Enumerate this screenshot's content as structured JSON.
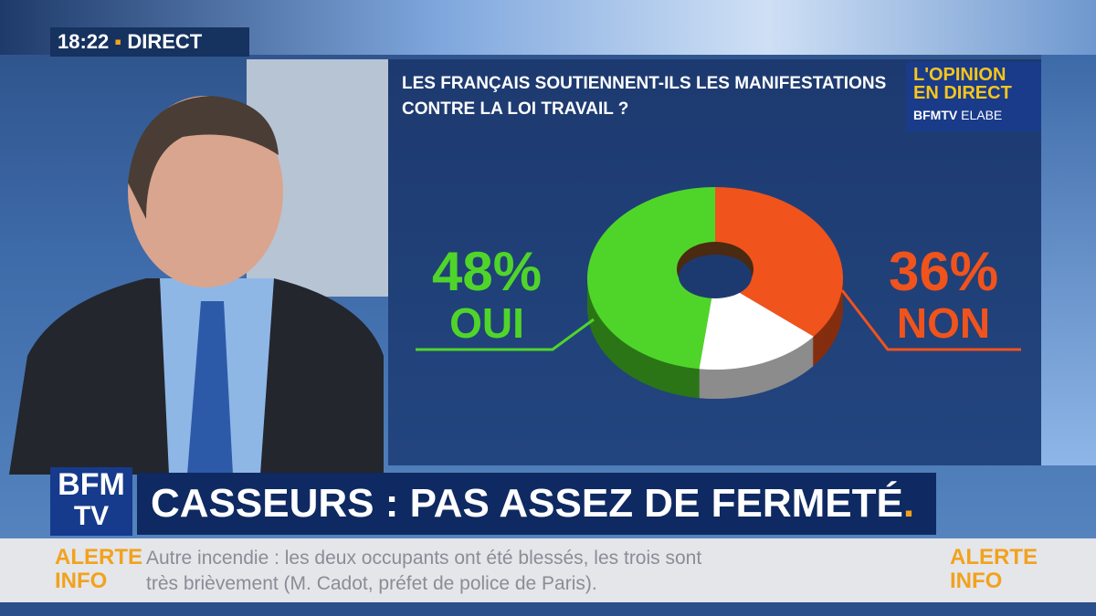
{
  "chart_data": {
    "type": "pie",
    "title": "LES FRANÇAIS SOUTIENNENT-ILS LES MANIFESTATIONS CONTRE LA LOI TRAVAIL ?",
    "categories": [
      "OUI",
      "NON",
      null
    ],
    "values": [
      48,
      36,
      16
    ],
    "value_labels": [
      "48%",
      "36%",
      null
    ],
    "colors": [
      "#4fd52a",
      "#f0531c",
      "#ffffff"
    ]
  },
  "broadcast": {
    "clock": "18:22",
    "live": "DIRECT",
    "badge": {
      "line1": "L'OPINION",
      "line2": "EN DIRECT",
      "line3": "BFMTV",
      "line4": "ELABE"
    },
    "logo": {
      "line1": "BFM",
      "line2": "TV"
    },
    "headline": "CASSEURS : PAS ASSEZ DE FERMETÉ",
    "alert_left": {
      "line1": "ALERTE",
      "line2": "INFO"
    },
    "alert_right": {
      "line1": "ALERTE",
      "line2": "INFO"
    },
    "ticker": [
      "Autre incendie : les deux occupants ont été blessés, les trois sont",
      "très brièvement (M. Cadot, préfet de police de Paris)."
    ]
  }
}
